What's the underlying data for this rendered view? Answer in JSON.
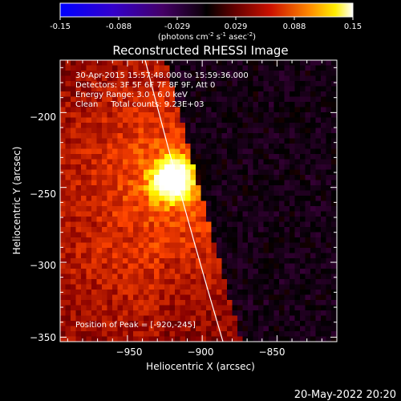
{
  "colorbar": {
    "ticks": [
      "-0.15",
      "-0.088",
      "-0.029",
      "0.029",
      "0.088",
      "0.15"
    ],
    "units_main": "(photons cm",
    "units_sup1": "-2",
    "units_mid1": " s",
    "units_sup2": "-1",
    "units_mid2": " asec",
    "units_sup3": "-2",
    "units_end": ")"
  },
  "title": "Reconstructed RHESSI Image",
  "annotations": {
    "time": "30-Apr-2015 15:57:48.000 to 15:59:36.000",
    "detectors": "Detectors: 3F 5F 6F 7F 8F 9F, Att 0",
    "energy": "Energy Range: 3.0 - 6.0 keV",
    "clean": "Clean     Total counts: 9.23E+03",
    "peak": "Position of Peak = [-920,-245]"
  },
  "footer_date": "20-May-2022 20:20",
  "chart_data": {
    "type": "heatmap",
    "title": "Reconstructed RHESSI Image",
    "xlabel": "Heliocentric X (arcsec)",
    "ylabel": "Heliocentric Y (arcsec)",
    "xlim": [
      -995,
      -810
    ],
    "ylim": [
      -353,
      -165
    ],
    "x_ticks": [
      -950,
      -900,
      -850
    ],
    "y_ticks": [
      -200,
      -250,
      -300,
      -350
    ],
    "x_tick_labels": [
      "−950",
      "−900",
      "−850"
    ],
    "y_tick_labels": [
      "−200",
      "−250",
      "−300",
      "−350"
    ],
    "colorbar_range": [
      -0.15,
      0.15
    ],
    "peak": {
      "x": -920,
      "y": -245
    },
    "colormap": [
      "#0000ff",
      "#4400aa",
      "#440044",
      "#000000",
      "#880000",
      "#ff4400",
      "#ffff00",
      "#ffffff"
    ]
  }
}
